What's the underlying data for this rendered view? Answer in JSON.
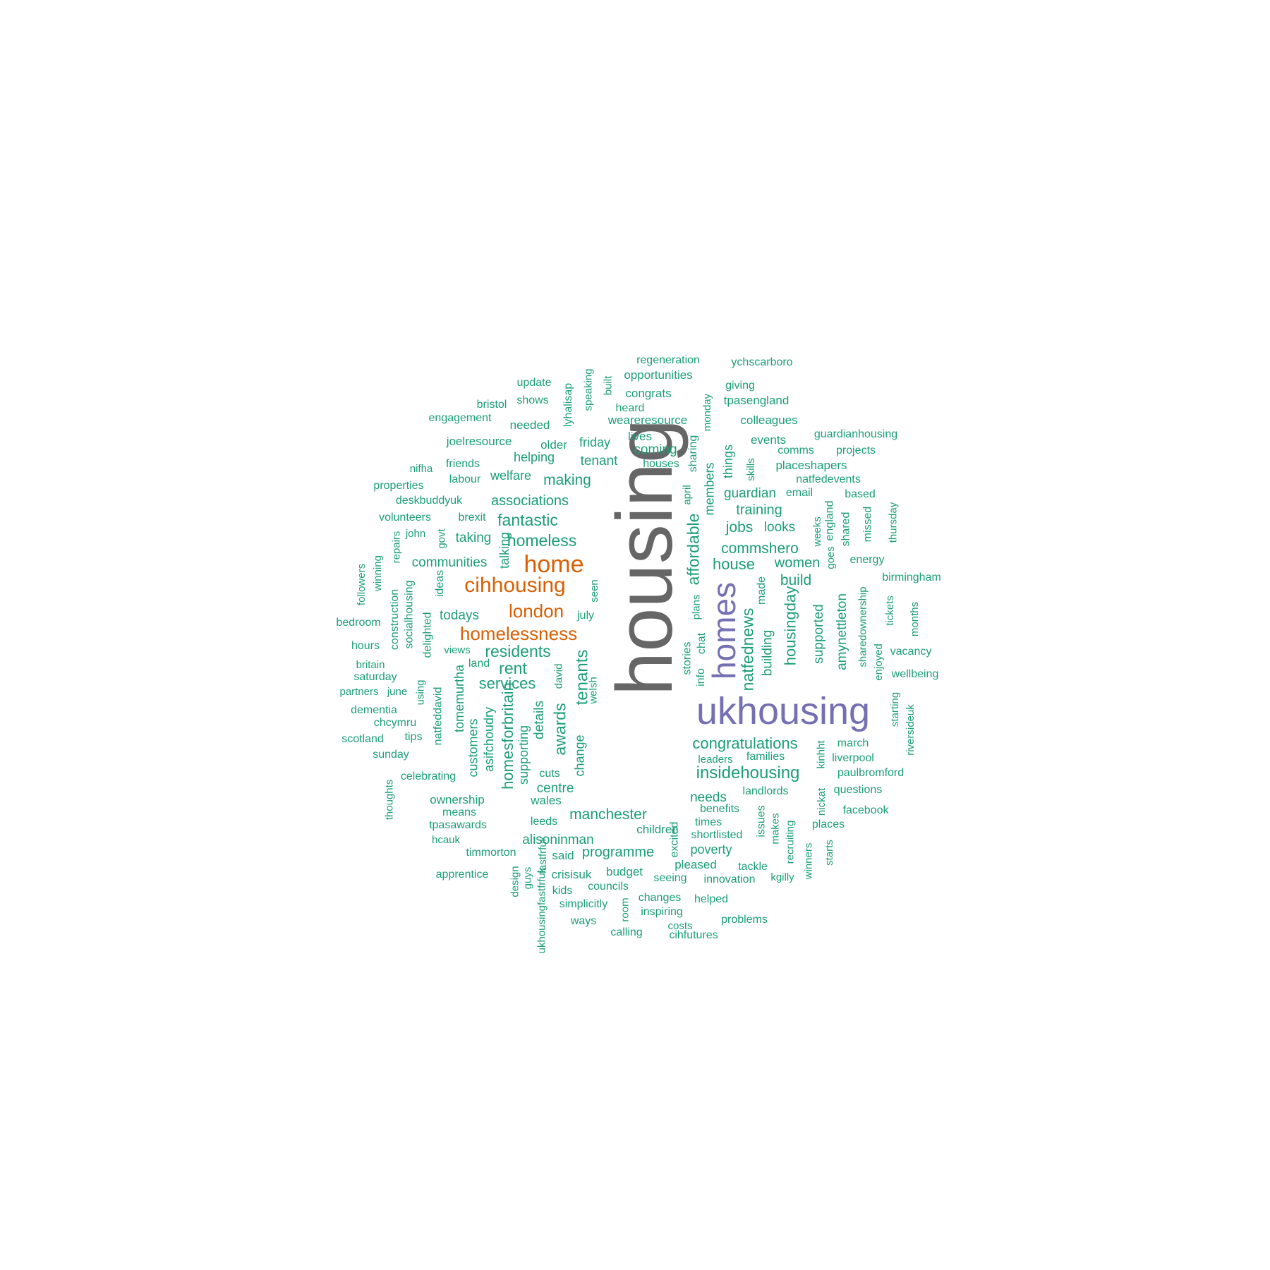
{
  "colors": {
    "top": "#666666",
    "large": "#7570B3",
    "mid": "#D95F02",
    "small": "#1B9E77",
    "background": "#ffffff"
  },
  "words": [
    {
      "text": "housing",
      "tier": "top",
      "vertical": true
    },
    {
      "text": "ukhousing",
      "tier": "large",
      "vertical": false
    },
    {
      "text": "homes",
      "tier": "large",
      "vertical": true
    },
    {
      "text": "home",
      "tier": "mid",
      "vertical": false
    },
    {
      "text": "cihhousing",
      "tier": "mid",
      "vertical": false
    },
    {
      "text": "london",
      "tier": "mid",
      "vertical": false
    },
    {
      "text": "homelessness",
      "tier": "mid",
      "vertical": false
    },
    {
      "text": "congratulations",
      "tier": "small",
      "vertical": false
    },
    {
      "text": "insidehousing",
      "tier": "small",
      "vertical": false
    },
    {
      "text": "homeless",
      "tier": "small",
      "vertical": false
    },
    {
      "text": "fantastic",
      "tier": "small",
      "vertical": false
    },
    {
      "text": "residents",
      "tier": "small",
      "vertical": false
    },
    {
      "text": "rent",
      "tier": "small",
      "vertical": false
    },
    {
      "text": "services",
      "tier": "small",
      "vertical": false
    },
    {
      "text": "house",
      "tier": "small",
      "vertical": false
    },
    {
      "text": "manchester",
      "tier": "small",
      "vertical": false
    },
    {
      "text": "affordable",
      "tier": "small",
      "vertical": true
    },
    {
      "text": "natfednews",
      "tier": "small",
      "vertical": true
    },
    {
      "text": "tenants",
      "tier": "small",
      "vertical": true
    },
    {
      "text": "awards",
      "tier": "small",
      "vertical": true
    },
    {
      "text": "homesforbritain",
      "tier": "small",
      "vertical": true
    },
    {
      "text": "housingday",
      "tier": "small",
      "vertical": true
    },
    {
      "text": "associations",
      "tier": "small",
      "vertical": false
    },
    {
      "text": "making",
      "tier": "small",
      "vertical": false
    },
    {
      "text": "commshero",
      "tier": "small",
      "vertical": false
    },
    {
      "text": "women",
      "tier": "small",
      "vertical": false
    },
    {
      "text": "build",
      "tier": "small",
      "vertical": false
    },
    {
      "text": "jobs",
      "tier": "small",
      "vertical": false
    },
    {
      "text": "training",
      "tier": "small",
      "vertical": false
    },
    {
      "text": "guardian",
      "tier": "small",
      "vertical": false
    },
    {
      "text": "programme",
      "tier": "small",
      "vertical": false
    },
    {
      "text": "alisoninman",
      "tier": "small",
      "vertical": false
    },
    {
      "text": "centre",
      "tier": "small",
      "vertical": false
    },
    {
      "text": "needs",
      "tier": "small",
      "vertical": false
    },
    {
      "text": "communities",
      "tier": "small",
      "vertical": false
    },
    {
      "text": "todays",
      "tier": "small",
      "vertical": false
    },
    {
      "text": "taking",
      "tier": "small",
      "vertical": false
    },
    {
      "text": "tenant",
      "tier": "small",
      "vertical": false
    },
    {
      "text": "coming",
      "tier": "small",
      "vertical": false
    },
    {
      "text": "looks",
      "tier": "small",
      "vertical": false
    },
    {
      "text": "poverty",
      "tier": "small",
      "vertical": false
    },
    {
      "text": "welfare",
      "tier": "small",
      "vertical": false
    },
    {
      "text": "friday",
      "tier": "small",
      "vertical": false
    },
    {
      "text": "helping",
      "tier": "small",
      "vertical": false
    },
    {
      "text": "supported",
      "tier": "small",
      "vertical": true
    },
    {
      "text": "amynettleton",
      "tier": "small",
      "vertical": true
    },
    {
      "text": "building",
      "tier": "small",
      "vertical": true
    },
    {
      "text": "details",
      "tier": "small",
      "vertical": true
    },
    {
      "text": "change",
      "tier": "small",
      "vertical": true
    },
    {
      "text": "supporting",
      "tier": "small",
      "vertical": true
    },
    {
      "text": "asifchoudry",
      "tier": "small",
      "vertical": true
    },
    {
      "text": "customers",
      "tier": "small",
      "vertical": true
    },
    {
      "text": "tomemurtha",
      "tier": "small",
      "vertical": true
    },
    {
      "text": "members",
      "tier": "small",
      "vertical": true
    },
    {
      "text": "things",
      "tier": "small",
      "vertical": true
    },
    {
      "text": "talking",
      "tier": "small",
      "vertical": true
    },
    {
      "text": "regeneration",
      "tier": "small",
      "vertical": false
    },
    {
      "text": "ychscarboro",
      "tier": "small",
      "vertical": false
    },
    {
      "text": "opportunities",
      "tier": "small",
      "vertical": false
    },
    {
      "text": "update",
      "tier": "small",
      "vertical": false
    },
    {
      "text": "giving",
      "tier": "small",
      "vertical": false
    },
    {
      "text": "congrats",
      "tier": "small",
      "vertical": false
    },
    {
      "text": "shows",
      "tier": "small",
      "vertical": false
    },
    {
      "text": "bristol",
      "tier": "small",
      "vertical": false
    },
    {
      "text": "heard",
      "tier": "small",
      "vertical": false
    },
    {
      "text": "tpasengland",
      "tier": "small",
      "vertical": false
    },
    {
      "text": "engagement",
      "tier": "small",
      "vertical": false
    },
    {
      "text": "weareresource",
      "tier": "small",
      "vertical": false
    },
    {
      "text": "colleagues",
      "tier": "small",
      "vertical": false
    },
    {
      "text": "needed",
      "tier": "small",
      "vertical": false
    },
    {
      "text": "guardianhousing",
      "tier": "small",
      "vertical": false
    },
    {
      "text": "joelresource",
      "tier": "small",
      "vertical": false
    },
    {
      "text": "older",
      "tier": "small",
      "vertical": false
    },
    {
      "text": "lives",
      "tier": "small",
      "vertical": false
    },
    {
      "text": "events",
      "tier": "small",
      "vertical": false
    },
    {
      "text": "comms",
      "tier": "small",
      "vertical": false
    },
    {
      "text": "projects",
      "tier": "small",
      "vertical": false
    },
    {
      "text": "nifha",
      "tier": "small",
      "vertical": false
    },
    {
      "text": "friends",
      "tier": "small",
      "vertical": false
    },
    {
      "text": "houses",
      "tier": "small",
      "vertical": false
    },
    {
      "text": "placeshapers",
      "tier": "small",
      "vertical": false
    },
    {
      "text": "labour",
      "tier": "small",
      "vertical": false
    },
    {
      "text": "natfedevents",
      "tier": "small",
      "vertical": false
    },
    {
      "text": "properties",
      "tier": "small",
      "vertical": false
    },
    {
      "text": "email",
      "tier": "small",
      "vertical": false
    },
    {
      "text": "based",
      "tier": "small",
      "vertical": false
    },
    {
      "text": "deskbuddyuk",
      "tier": "small",
      "vertical": false
    },
    {
      "text": "volunteers",
      "tier": "small",
      "vertical": false
    },
    {
      "text": "brexit",
      "tier": "small",
      "vertical": false
    },
    {
      "text": "john",
      "tier": "small",
      "vertical": false
    },
    {
      "text": "energy",
      "tier": "small",
      "vertical": false
    },
    {
      "text": "birmingham",
      "tier": "small",
      "vertical": false
    },
    {
      "text": "bedroom",
      "tier": "small",
      "vertical": false
    },
    {
      "text": "hours",
      "tier": "small",
      "vertical": false
    },
    {
      "text": "views",
      "tier": "small",
      "vertical": false
    },
    {
      "text": "vacancy",
      "tier": "small",
      "vertical": false
    },
    {
      "text": "britain",
      "tier": "small",
      "vertical": false
    },
    {
      "text": "land",
      "tier": "small",
      "vertical": false
    },
    {
      "text": "wellbeing",
      "tier": "small",
      "vertical": false
    },
    {
      "text": "saturday",
      "tier": "small",
      "vertical": false
    },
    {
      "text": "partners",
      "tier": "small",
      "vertical": false
    },
    {
      "text": "june",
      "tier": "small",
      "vertical": false
    },
    {
      "text": "dementia",
      "tier": "small",
      "vertical": false
    },
    {
      "text": "chcymru",
      "tier": "small",
      "vertical": false
    },
    {
      "text": "scotland",
      "tier": "small",
      "vertical": false
    },
    {
      "text": "tips",
      "tier": "small",
      "vertical": false
    },
    {
      "text": "march",
      "tier": "small",
      "vertical": false
    },
    {
      "text": "sunday",
      "tier": "small",
      "vertical": false
    },
    {
      "text": "leaders",
      "tier": "small",
      "vertical": false
    },
    {
      "text": "families",
      "tier": "small",
      "vertical": false
    },
    {
      "text": "liverpool",
      "tier": "small",
      "vertical": false
    },
    {
      "text": "celebrating",
      "tier": "small",
      "vertical": false
    },
    {
      "text": "cuts",
      "tier": "small",
      "vertical": false
    },
    {
      "text": "paulbromford",
      "tier": "small",
      "vertical": false
    },
    {
      "text": "landlords",
      "tier": "small",
      "vertical": false
    },
    {
      "text": "questions",
      "tier": "small",
      "vertical": false
    },
    {
      "text": "ownership",
      "tier": "small",
      "vertical": false
    },
    {
      "text": "wales",
      "tier": "small",
      "vertical": false
    },
    {
      "text": "benefits",
      "tier": "small",
      "vertical": false
    },
    {
      "text": "means",
      "tier": "small",
      "vertical": false
    },
    {
      "text": "facebook",
      "tier": "small",
      "vertical": false
    },
    {
      "text": "leeds",
      "tier": "small",
      "vertical": false
    },
    {
      "text": "times",
      "tier": "small",
      "vertical": false
    },
    {
      "text": "tpasawards",
      "tier": "small",
      "vertical": false
    },
    {
      "text": "places",
      "tier": "small",
      "vertical": false
    },
    {
      "text": "children",
      "tier": "small",
      "vertical": false
    },
    {
      "text": "shortlisted",
      "tier": "small",
      "vertical": false
    },
    {
      "text": "hcauk",
      "tier": "small",
      "vertical": false
    },
    {
      "text": "timmorton",
      "tier": "small",
      "vertical": false
    },
    {
      "text": "said",
      "tier": "small",
      "vertical": false
    },
    {
      "text": "pleased",
      "tier": "small",
      "vertical": false
    },
    {
      "text": "tackle",
      "tier": "small",
      "vertical": false
    },
    {
      "text": "crisisuk",
      "tier": "small",
      "vertical": false
    },
    {
      "text": "budget",
      "tier": "small",
      "vertical": false
    },
    {
      "text": "apprentice",
      "tier": "small",
      "vertical": false
    },
    {
      "text": "seeing",
      "tier": "small",
      "vertical": false
    },
    {
      "text": "innovation",
      "tier": "small",
      "vertical": false
    },
    {
      "text": "kgilly",
      "tier": "small",
      "vertical": false
    },
    {
      "text": "councils",
      "tier": "small",
      "vertical": false
    },
    {
      "text": "kids",
      "tier": "small",
      "vertical": false
    },
    {
      "text": "changes",
      "tier": "small",
      "vertical": false
    },
    {
      "text": "helped",
      "tier": "small",
      "vertical": false
    },
    {
      "text": "simplicitly",
      "tier": "small",
      "vertical": false
    },
    {
      "text": "inspiring",
      "tier": "small",
      "vertical": false
    },
    {
      "text": "ways",
      "tier": "small",
      "vertical": false
    },
    {
      "text": "costs",
      "tier": "small",
      "vertical": false
    },
    {
      "text": "problems",
      "tier": "small",
      "vertical": false
    },
    {
      "text": "calling",
      "tier": "small",
      "vertical": false
    },
    {
      "text": "cihfutures",
      "tier": "small",
      "vertical": false
    },
    {
      "text": "july",
      "tier": "small",
      "vertical": false
    },
    {
      "text": "speaking",
      "tier": "small",
      "vertical": true
    },
    {
      "text": "lyhalisap",
      "tier": "small",
      "vertical": true
    },
    {
      "text": "built",
      "tier": "small",
      "vertical": true
    },
    {
      "text": "monday",
      "tier": "small",
      "vertical": true
    },
    {
      "text": "sharing",
      "tier": "small",
      "vertical": true
    },
    {
      "text": "april",
      "tier": "small",
      "vertical": true
    },
    {
      "text": "skills",
      "tier": "small",
      "vertical": true
    },
    {
      "text": "england",
      "tier": "small",
      "vertical": true
    },
    {
      "text": "weeks",
      "tier": "small",
      "vertical": true
    },
    {
      "text": "goes",
      "tier": "small",
      "vertical": true
    },
    {
      "text": "shared",
      "tier": "small",
      "vertical": true
    },
    {
      "text": "missed",
      "tier": "small",
      "vertical": true
    },
    {
      "text": "thursday",
      "tier": "small",
      "vertical": true
    },
    {
      "text": "govt",
      "tier": "small",
      "vertical": true
    },
    {
      "text": "repairs",
      "tier": "small",
      "vertical": true
    },
    {
      "text": "ideas",
      "tier": "small",
      "vertical": true
    },
    {
      "text": "followers",
      "tier": "small",
      "vertical": true
    },
    {
      "text": "winning",
      "tier": "small",
      "vertical": true
    },
    {
      "text": "construction",
      "tier": "small",
      "vertical": true
    },
    {
      "text": "socialhousing",
      "tier": "small",
      "vertical": true
    },
    {
      "text": "delighted",
      "tier": "small",
      "vertical": true
    },
    {
      "text": "seen",
      "tier": "small",
      "vertical": true
    },
    {
      "text": "made",
      "tier": "small",
      "vertical": true
    },
    {
      "text": "plans",
      "tier": "small",
      "vertical": true
    },
    {
      "text": "sharedownership",
      "tier": "small",
      "vertical": true
    },
    {
      "text": "tickets",
      "tier": "small",
      "vertical": true
    },
    {
      "text": "months",
      "tier": "small",
      "vertical": true
    },
    {
      "text": "enjoyed",
      "tier": "small",
      "vertical": true
    },
    {
      "text": "stories",
      "tier": "small",
      "vertical": true
    },
    {
      "text": "chat",
      "tier": "small",
      "vertical": true
    },
    {
      "text": "info",
      "tier": "small",
      "vertical": true
    },
    {
      "text": "david",
      "tier": "small",
      "vertical": true
    },
    {
      "text": "welsh",
      "tier": "small",
      "vertical": true
    },
    {
      "text": "using",
      "tier": "small",
      "vertical": true
    },
    {
      "text": "natfeddavid",
      "tier": "small",
      "vertical": true
    },
    {
      "text": "starting",
      "tier": "small",
      "vertical": true
    },
    {
      "text": "riversideuk",
      "tier": "small",
      "vertical": true
    },
    {
      "text": "kinhht",
      "tier": "small",
      "vertical": true
    },
    {
      "text": "nickat",
      "tier": "small",
      "vertical": true
    },
    {
      "text": "thoughts",
      "tier": "small",
      "vertical": true
    },
    {
      "text": "excited",
      "tier": "small",
      "vertical": true
    },
    {
      "text": "issues",
      "tier": "small",
      "vertical": true
    },
    {
      "text": "makes",
      "tier": "small",
      "vertical": true
    },
    {
      "text": "recruiting",
      "tier": "small",
      "vertical": true
    },
    {
      "text": "winners",
      "tier": "small",
      "vertical": true
    },
    {
      "text": "starts",
      "tier": "small",
      "vertical": true
    },
    {
      "text": "fastfrfuk",
      "tier": "small",
      "vertical": true
    },
    {
      "text": "design",
      "tier": "small",
      "vertical": true
    },
    {
      "text": "guys",
      "tier": "small",
      "vertical": true
    },
    {
      "text": "ukhousingfastfrfuk",
      "tier": "small",
      "vertical": true
    },
    {
      "text": "room",
      "tier": "small",
      "vertical": true
    }
  ]
}
